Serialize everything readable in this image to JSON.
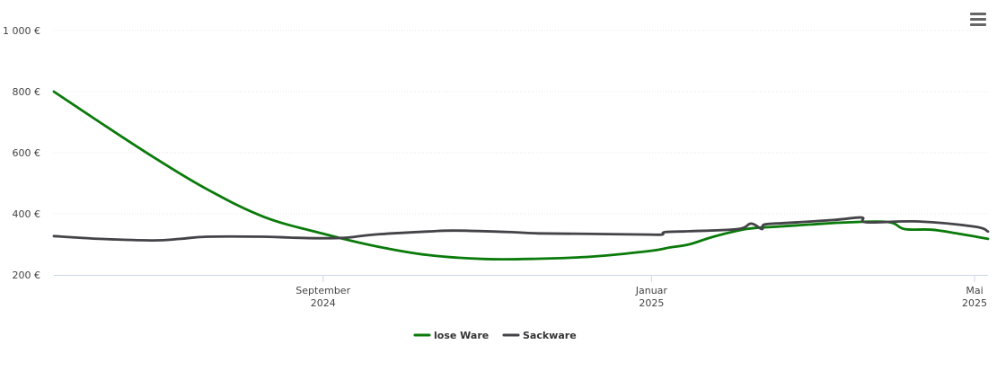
{
  "chart_data": {
    "type": "line",
    "title": "",
    "xlabel": "",
    "ylabel": "",
    "x_range": [
      "2024-05-24",
      "2025-05-06"
    ],
    "ylim": [
      200,
      1000
    ],
    "y_ticks": [
      {
        "value": 200,
        "label": "200 €"
      },
      {
        "value": 400,
        "label": "400 €"
      },
      {
        "value": 600,
        "label": "600 €"
      },
      {
        "value": 800,
        "label": "800 €"
      },
      {
        "value": 1000,
        "label": "1 000 €"
      }
    ],
    "x_ticks": [
      {
        "date": "2024-09-01",
        "label": [
          "September",
          "2024"
        ]
      },
      {
        "date": "2025-01-01",
        "label": [
          "Januar",
          "2025"
        ]
      },
      {
        "date": "2025-05-01",
        "label": [
          "Mai",
          "2025"
        ]
      }
    ],
    "grid": true,
    "legend_position": "bottom-center",
    "series": [
      {
        "name": "lose Ware",
        "color": "#0a7a0a",
        "points": [
          [
            "2024-05-24",
            800
          ],
          [
            "2024-06-10",
            700
          ],
          [
            "2024-07-01",
            580
          ],
          [
            "2024-07-20",
            480
          ],
          [
            "2024-08-10",
            390
          ],
          [
            "2024-09-01",
            335
          ],
          [
            "2024-09-20",
            295
          ],
          [
            "2024-10-10",
            265
          ],
          [
            "2024-10-31",
            252
          ],
          [
            "2024-11-20",
            253
          ],
          [
            "2024-12-10",
            260
          ],
          [
            "2024-12-31",
            278
          ],
          [
            "2025-01-08",
            290
          ],
          [
            "2025-01-15",
            300
          ],
          [
            "2025-01-24",
            325
          ],
          [
            "2025-02-05",
            350
          ],
          [
            "2025-02-15",
            357
          ],
          [
            "2025-03-01",
            365
          ],
          [
            "2025-03-15",
            372
          ],
          [
            "2025-03-30",
            373
          ],
          [
            "2025-04-05",
            350
          ],
          [
            "2025-04-15",
            348
          ],
          [
            "2025-04-25",
            335
          ],
          [
            "2025-05-06",
            318
          ]
        ]
      },
      {
        "name": "Sackware",
        "color": "#434348",
        "points": [
          [
            "2024-05-24",
            327
          ],
          [
            "2024-06-10",
            318
          ],
          [
            "2024-06-30",
            313
          ],
          [
            "2024-07-10",
            318
          ],
          [
            "2024-07-20",
            325
          ],
          [
            "2024-08-10",
            325
          ],
          [
            "2024-08-20",
            322
          ],
          [
            "2024-09-01",
            320
          ],
          [
            "2024-09-10",
            322
          ],
          [
            "2024-09-20",
            332
          ],
          [
            "2024-10-10",
            342
          ],
          [
            "2024-10-20",
            345
          ],
          [
            "2024-11-10",
            340
          ],
          [
            "2024-11-20",
            336
          ],
          [
            "2024-12-10",
            334
          ],
          [
            "2024-12-31",
            332
          ],
          [
            "2025-01-05",
            332
          ],
          [
            "2025-01-06",
            340
          ],
          [
            "2025-01-15",
            343
          ],
          [
            "2025-02-02",
            350
          ],
          [
            "2025-02-07",
            368
          ],
          [
            "2025-02-11",
            350
          ],
          [
            "2025-02-12",
            365
          ],
          [
            "2025-02-20",
            370
          ],
          [
            "2025-03-10",
            380
          ],
          [
            "2025-03-20",
            388
          ],
          [
            "2025-03-22",
            372
          ],
          [
            "2025-04-10",
            375
          ],
          [
            "2025-05-01",
            358
          ],
          [
            "2025-05-06",
            342
          ]
        ]
      }
    ]
  },
  "toolbar": {
    "menu_icon": "hamburger-menu-icon"
  }
}
